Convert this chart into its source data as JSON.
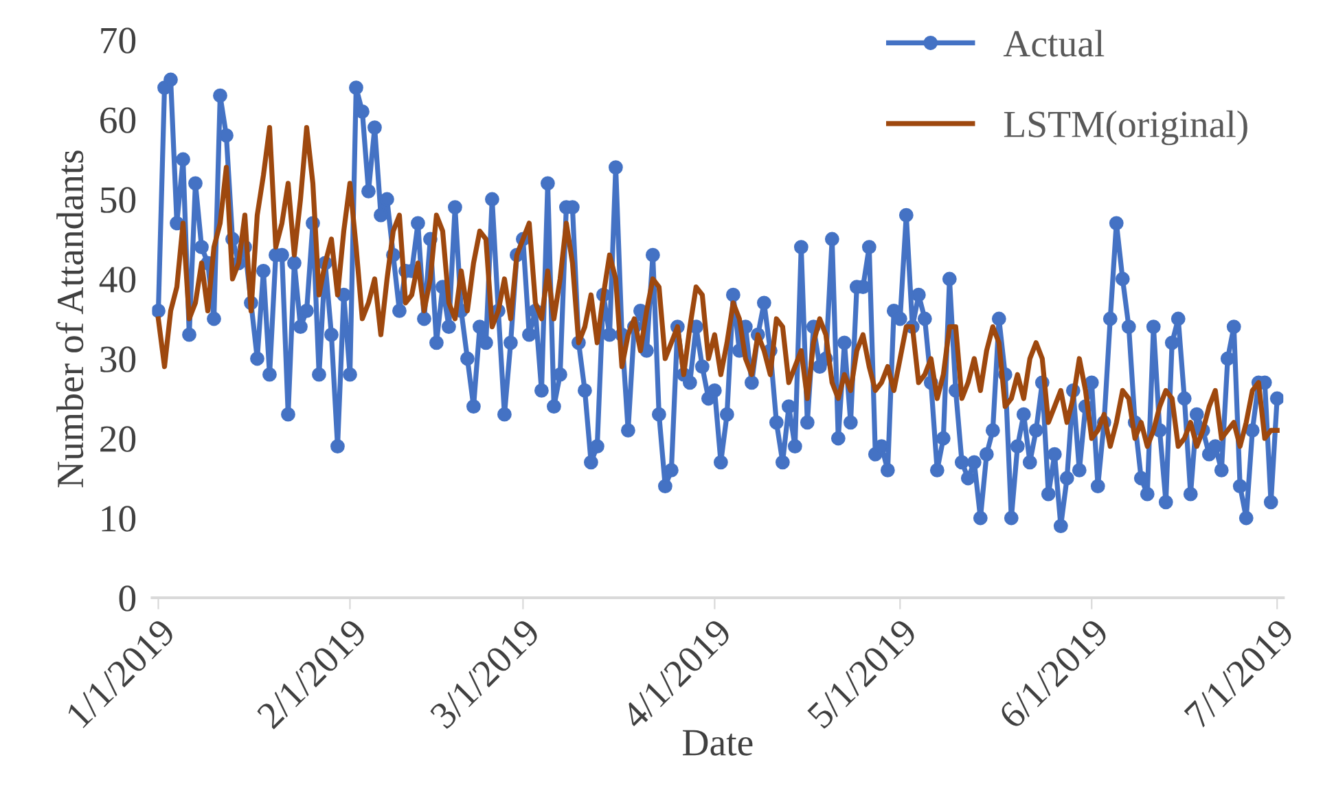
{
  "chart_data": {
    "type": "line",
    "xlabel": "Date",
    "ylabel": "Number of Attandants",
    "x": [
      "2019-01-01",
      "2019-01-02",
      "2019-01-03",
      "2019-01-04",
      "2019-01-05",
      "2019-01-06",
      "2019-01-07",
      "2019-01-08",
      "2019-01-09",
      "2019-01-10",
      "2019-01-11",
      "2019-01-12",
      "2019-01-13",
      "2019-01-14",
      "2019-01-15",
      "2019-01-16",
      "2019-01-17",
      "2019-01-18",
      "2019-01-19",
      "2019-01-20",
      "2019-01-21",
      "2019-01-22",
      "2019-01-23",
      "2019-01-24",
      "2019-01-25",
      "2019-01-26",
      "2019-01-27",
      "2019-01-28",
      "2019-01-29",
      "2019-01-30",
      "2019-01-31",
      "2019-02-01",
      "2019-02-02",
      "2019-02-03",
      "2019-02-04",
      "2019-02-05",
      "2019-02-06",
      "2019-02-07",
      "2019-02-08",
      "2019-02-09",
      "2019-02-10",
      "2019-02-11",
      "2019-02-12",
      "2019-02-13",
      "2019-02-14",
      "2019-02-15",
      "2019-02-16",
      "2019-02-17",
      "2019-02-18",
      "2019-02-19",
      "2019-02-20",
      "2019-02-21",
      "2019-02-22",
      "2019-02-23",
      "2019-02-24",
      "2019-02-25",
      "2019-02-26",
      "2019-02-27",
      "2019-02-28",
      "2019-03-01",
      "2019-03-02",
      "2019-03-03",
      "2019-03-04",
      "2019-03-05",
      "2019-03-06",
      "2019-03-07",
      "2019-03-08",
      "2019-03-09",
      "2019-03-10",
      "2019-03-11",
      "2019-03-12",
      "2019-03-13",
      "2019-03-14",
      "2019-03-15",
      "2019-03-16",
      "2019-03-17",
      "2019-03-18",
      "2019-03-19",
      "2019-03-20",
      "2019-03-21",
      "2019-03-22",
      "2019-03-23",
      "2019-03-24",
      "2019-03-25",
      "2019-03-26",
      "2019-03-27",
      "2019-03-28",
      "2019-03-29",
      "2019-03-30",
      "2019-03-31",
      "2019-04-01",
      "2019-04-02",
      "2019-04-03",
      "2019-04-04",
      "2019-04-05",
      "2019-04-06",
      "2019-04-07",
      "2019-04-08",
      "2019-04-09",
      "2019-04-10",
      "2019-04-11",
      "2019-04-12",
      "2019-04-13",
      "2019-04-14",
      "2019-04-15",
      "2019-04-16",
      "2019-04-17",
      "2019-04-18",
      "2019-04-19",
      "2019-04-20",
      "2019-04-21",
      "2019-04-22",
      "2019-04-23",
      "2019-04-24",
      "2019-04-25",
      "2019-04-26",
      "2019-04-27",
      "2019-04-28",
      "2019-04-29",
      "2019-04-30",
      "2019-05-01",
      "2019-05-02",
      "2019-05-03",
      "2019-05-04",
      "2019-05-05",
      "2019-05-06",
      "2019-05-07",
      "2019-05-08",
      "2019-05-09",
      "2019-05-10",
      "2019-05-11",
      "2019-05-12",
      "2019-05-13",
      "2019-05-14",
      "2019-05-15",
      "2019-05-16",
      "2019-05-17",
      "2019-05-18",
      "2019-05-19",
      "2019-05-20",
      "2019-05-21",
      "2019-05-22",
      "2019-05-23",
      "2019-05-24",
      "2019-05-25",
      "2019-05-26",
      "2019-05-27",
      "2019-05-28",
      "2019-05-29",
      "2019-05-30",
      "2019-05-31",
      "2019-06-01",
      "2019-06-02",
      "2019-06-03",
      "2019-06-04",
      "2019-06-05",
      "2019-06-06",
      "2019-06-07",
      "2019-06-08",
      "2019-06-09",
      "2019-06-10",
      "2019-06-11",
      "2019-06-12",
      "2019-06-13",
      "2019-06-14",
      "2019-06-15",
      "2019-06-16",
      "2019-06-17",
      "2019-06-18",
      "2019-06-19",
      "2019-06-20",
      "2019-06-21",
      "2019-06-22",
      "2019-06-23",
      "2019-06-24",
      "2019-06-25",
      "2019-06-26",
      "2019-06-27",
      "2019-06-28",
      "2019-06-29",
      "2019-06-30",
      "2019-07-01"
    ],
    "series": [
      {
        "name": "Actual",
        "color": "#4472c4",
        "marker": "circle",
        "values": [
          36,
          64,
          65,
          47,
          55,
          33,
          52,
          44,
          42,
          35,
          63,
          58,
          45,
          42,
          44,
          37,
          30,
          41,
          28,
          43,
          43,
          23,
          42,
          34,
          36,
          47,
          28,
          42,
          33,
          19,
          38,
          28,
          64,
          61,
          51,
          59,
          48,
          50,
          43,
          36,
          41,
          41,
          47,
          35,
          45,
          32,
          39,
          34,
          49,
          36,
          30,
          24,
          34,
          32,
          50,
          36,
          23,
          32,
          43,
          45,
          33,
          36,
          26,
          52,
          24,
          28,
          49,
          49,
          32,
          26,
          17,
          19,
          38,
          33,
          54,
          33,
          21,
          34,
          36,
          31,
          43,
          23,
          14,
          16,
          34,
          28,
          27,
          34,
          29,
          25,
          26,
          17,
          23,
          38,
          31,
          34,
          27,
          33,
          37,
          31,
          22,
          17,
          24,
          19,
          44,
          22,
          34,
          29,
          30,
          45,
          20,
          32,
          22,
          39,
          39,
          44,
          18,
          19,
          16,
          36,
          35,
          48,
          34,
          38,
          35,
          27,
          16,
          20,
          40,
          26,
          17,
          15,
          17,
          10,
          18,
          21,
          35,
          28,
          10,
          19,
          23,
          17,
          21,
          27,
          13,
          18,
          9,
          15,
          26,
          16,
          24,
          27,
          14,
          22,
          35,
          47,
          40,
          34,
          22,
          15,
          13,
          34,
          21,
          12,
          32,
          35,
          25,
          13,
          23,
          21,
          18,
          19,
          16,
          30,
          34,
          14,
          10,
          21,
          27,
          27,
          12,
          25
        ]
      },
      {
        "name": "LSTM(original)",
        "color": "#9e480e",
        "marker": "none",
        "values": [
          35,
          29,
          36,
          39,
          47,
          35,
          37,
          42,
          36,
          44,
          47,
          54,
          40,
          42,
          48,
          36,
          48,
          53,
          59,
          44,
          47,
          52,
          43,
          50,
          59,
          52,
          38,
          42,
          45,
          38,
          46,
          52,
          44,
          35,
          37,
          40,
          33,
          40,
          46,
          48,
          37,
          38,
          42,
          36,
          40,
          48,
          46,
          37,
          35,
          41,
          36,
          42,
          46,
          45,
          34,
          36,
          40,
          35,
          43,
          45,
          47,
          37,
          35,
          41,
          35,
          40,
          47,
          42,
          32,
          34,
          38,
          32,
          38,
          43,
          40,
          29,
          33,
          35,
          31,
          36,
          40,
          39,
          30,
          32,
          34,
          28,
          34,
          39,
          38,
          30,
          33,
          28,
          32,
          37,
          35,
          30,
          28,
          33,
          31,
          28,
          35,
          34,
          27,
          29,
          31,
          25,
          32,
          35,
          33,
          27,
          25,
          28,
          26,
          31,
          33,
          29,
          26,
          27,
          29,
          26,
          30,
          34,
          34,
          27,
          28,
          30,
          25,
          28,
          34,
          34,
          25,
          27,
          30,
          26,
          31,
          34,
          32,
          24,
          25,
          28,
          25,
          30,
          32,
          30,
          22,
          24,
          26,
          22,
          25,
          30,
          26,
          20,
          21,
          23,
          19,
          22,
          26,
          25,
          20,
          22,
          19,
          21,
          24,
          26,
          25,
          19,
          20,
          22,
          19,
          21,
          24,
          26,
          20,
          21,
          22,
          19,
          22,
          26,
          27,
          20,
          21,
          21
        ]
      }
    ],
    "xlim": [
      "2018-12-31",
      "2019-07-02"
    ],
    "xticks": [
      {
        "value": "2019-01-01",
        "label": "1/1/2019"
      },
      {
        "value": "2019-02-01",
        "label": "2/1/2019"
      },
      {
        "value": "2019-03-01",
        "label": "3/1/2019"
      },
      {
        "value": "2019-04-01",
        "label": "4/1/2019"
      },
      {
        "value": "2019-05-01",
        "label": "5/1/2019"
      },
      {
        "value": "2019-06-01",
        "label": "6/1/2019"
      },
      {
        "value": "2019-07-01",
        "label": "7/1/2019"
      }
    ],
    "ylim": [
      0,
      70
    ],
    "yticks": [
      0,
      10,
      20,
      30,
      40,
      50,
      60,
      70
    ],
    "grid": false,
    "legend": "top right",
    "line_style": "solid"
  }
}
